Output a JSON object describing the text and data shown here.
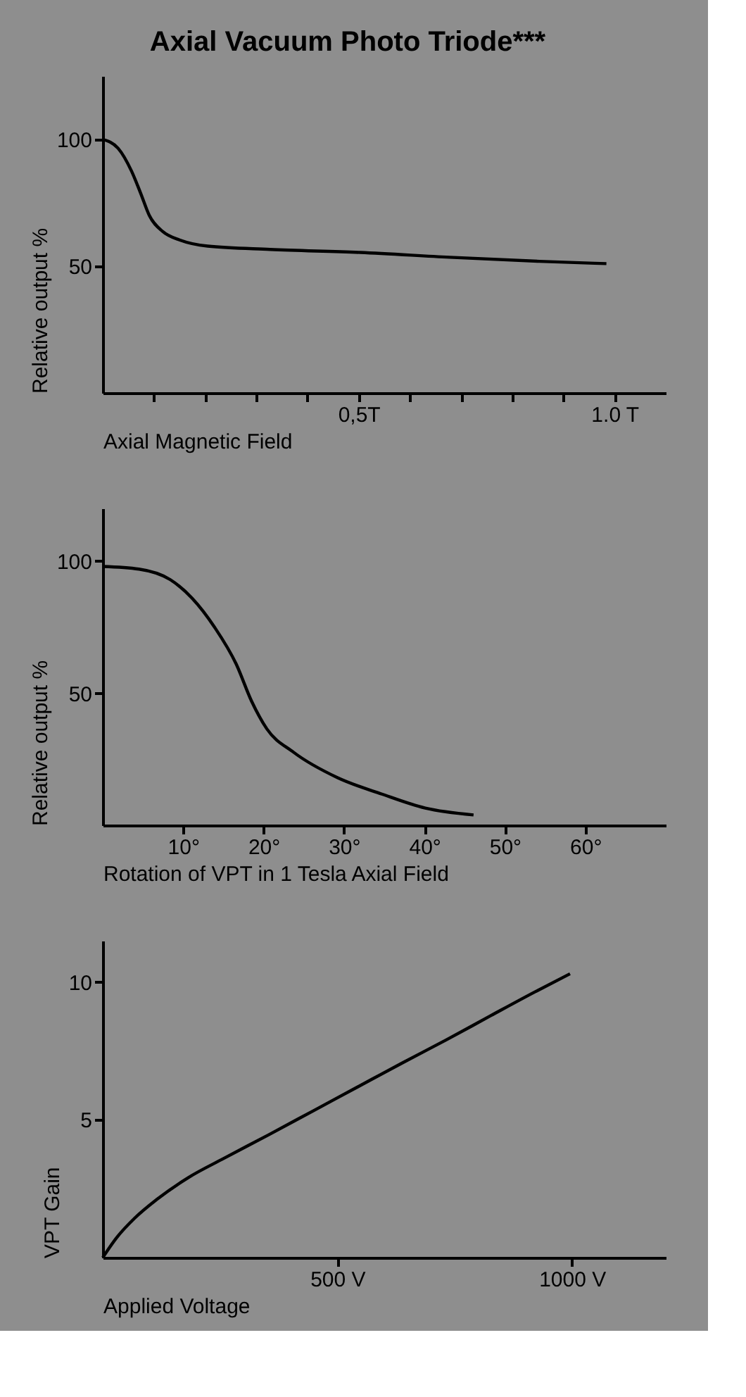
{
  "chart_data": [
    {
      "type": "line",
      "title": "Axial Vacuum Photo Triode***",
      "xlabel": "Axial Magnetic Field",
      "ylabel": "Relative output %",
      "x": [
        0,
        0.03,
        0.056,
        0.074,
        0.091,
        0.117,
        0.152,
        0.205,
        0.327,
        0.503,
        0.678,
        0.853,
        0.984
      ],
      "series": [
        {
          "color": "#000000",
          "values": [
            100,
            96.5,
            87.6,
            78.8,
            70,
            63.7,
            60.2,
            57.9,
            56.6,
            55.4,
            53.5,
            51.9,
            51
          ]
        }
      ],
      "xlim": [
        0,
        1.1
      ],
      "ylim": [
        0,
        125
      ],
      "xticks": [
        {
          "value": 0.1,
          "label": null
        },
        {
          "value": 0.2,
          "label": null
        },
        {
          "value": 0.3,
          "label": null
        },
        {
          "value": 0.4,
          "label": null
        },
        {
          "value": 0.5,
          "label": "0,5T"
        },
        {
          "value": 0.6,
          "label": null
        },
        {
          "value": 0.7,
          "label": null
        },
        {
          "value": 0.8,
          "label": null
        },
        {
          "value": 0.9,
          "label": null
        },
        {
          "value": 1.0,
          "label": "1.0 T"
        }
      ],
      "yticks": [
        50,
        100
      ],
      "grid": false,
      "marker": "none",
      "line_style": "solid"
    },
    {
      "type": "line",
      "xlabel": "Rotation of VPT in 1 Tesla Axial Field",
      "ylabel": "Relative output %",
      "x": [
        0,
        4.5,
        8.4,
        11.1,
        13.9,
        16.6,
        18.5,
        20.4,
        23.7,
        29.2,
        34.7,
        40.1,
        46.1
      ],
      "series": [
        {
          "color": "#000000",
          "values": [
            98,
            97,
            93,
            86,
            75,
            61,
            47,
            36.5,
            27.7,
            18,
            11.8,
            6.5,
            3.9
          ]
        }
      ],
      "xlim": [
        0,
        70
      ],
      "ylim": [
        0,
        120
      ],
      "xticks": [
        {
          "value": 10,
          "label": "10°"
        },
        {
          "value": 20,
          "label": "20°"
        },
        {
          "value": 30,
          "label": "30°"
        },
        {
          "value": 40,
          "label": "40°"
        },
        {
          "value": 50,
          "label": "50°"
        },
        {
          "value": 60,
          "label": "60°"
        }
      ],
      "yticks": [
        50,
        100
      ],
      "grid": false,
      "marker": "none",
      "line_style": "solid"
    },
    {
      "type": "line",
      "xlabel": "Applied Voltage",
      "ylabel": "VPT Gain",
      "x": [
        0,
        30,
        68,
        116,
        182,
        258,
        353,
        448,
        543,
        638,
        732,
        827,
        922,
        996
      ],
      "series": [
        {
          "color": "#000000",
          "values": [
            0,
            0.73,
            1.43,
            2.12,
            2.9,
            3.6,
            4.45,
            5.32,
            6.19,
            7.06,
            7.9,
            8.78,
            9.65,
            10.3
          ]
        }
      ],
      "xlim": [
        0,
        1200
      ],
      "ylim": [
        0,
        11.5
      ],
      "xticks": [
        {
          "value": 500,
          "label": "500 V"
        },
        {
          "value": 1000,
          "label": "1000 V"
        }
      ],
      "yticks": [
        5,
        10
      ],
      "grid": false,
      "marker": "none",
      "line_style": "solid"
    }
  ]
}
